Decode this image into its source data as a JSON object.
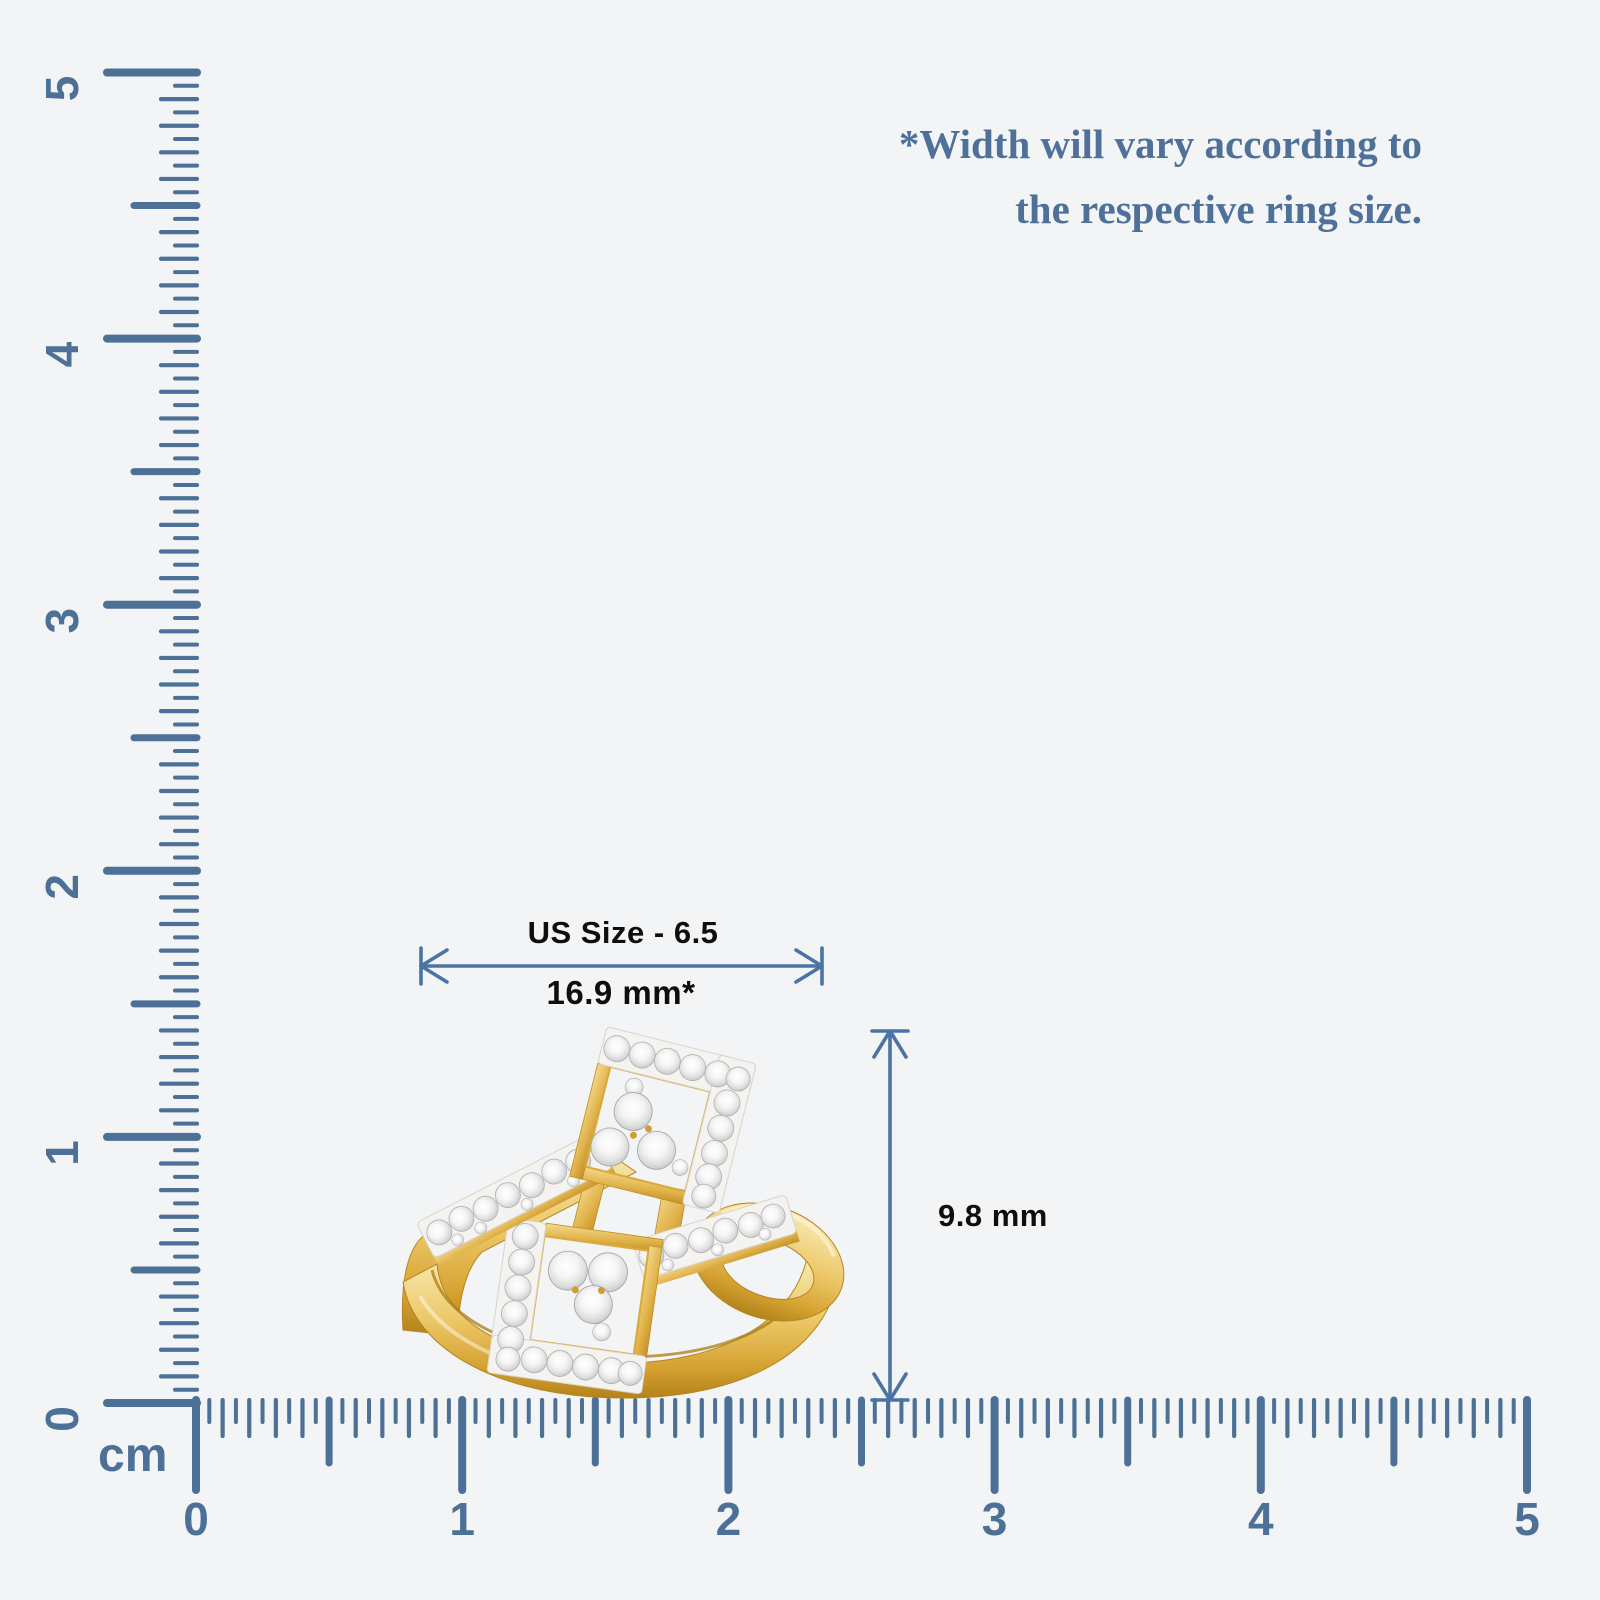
{
  "note": {
    "lines": [
      "*Width will vary according to",
      "the respective ring size."
    ]
  },
  "dimensions": {
    "width_size_label": "US Size - 6.5",
    "width_value": "16.9 mm*",
    "height_value": "9.8 mm"
  },
  "rulers": {
    "unit_label": "cm",
    "vertical_numbers": [
      "0",
      "1",
      "2",
      "3",
      "4",
      "5"
    ],
    "horizontal_numbers": [
      "0",
      "1",
      "2",
      "3",
      "4",
      "5"
    ]
  },
  "colors": {
    "background": "#f3f4f5",
    "ruler_blue": "#4c7096",
    "arrow_blue": "#4b74a4",
    "note_blue": "#4f7099",
    "label_black": "#0e0e0e",
    "gold": "#e3b54a",
    "diamond_white": "#f4f3f0"
  }
}
